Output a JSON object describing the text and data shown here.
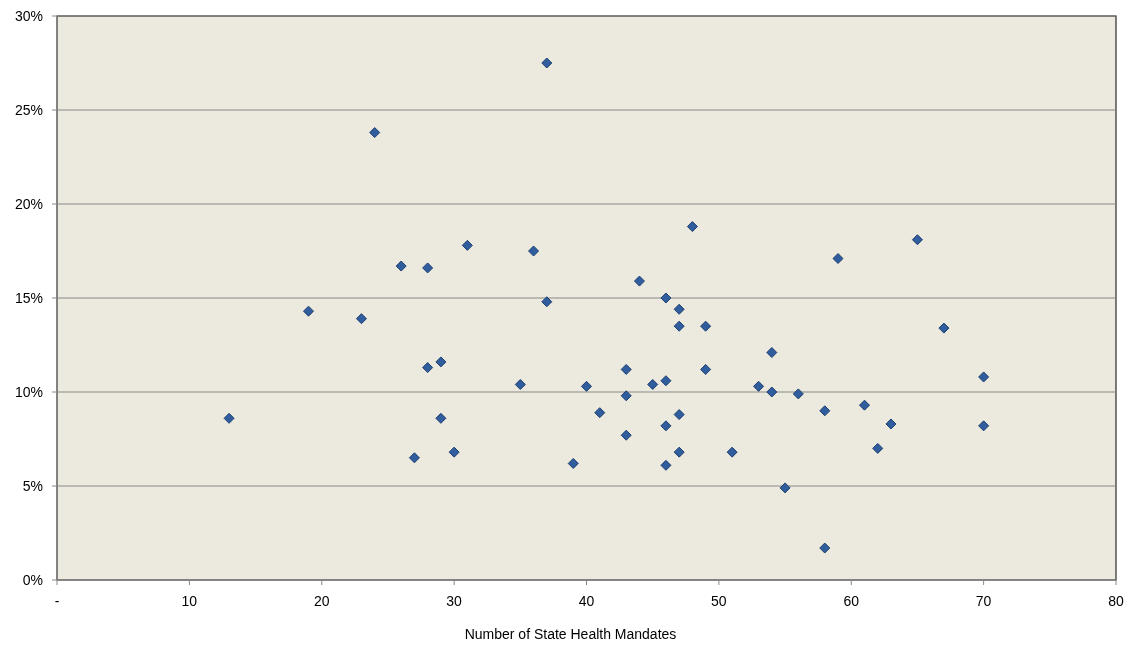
{
  "chart_data": {
    "type": "scatter",
    "xlabel": "Number of State Health Mandates",
    "x": [
      13,
      19,
      23,
      24,
      26,
      27,
      28,
      28,
      29,
      29,
      30,
      31,
      35,
      36,
      37,
      37,
      39,
      40,
      41,
      43,
      43,
      43,
      44,
      45,
      46,
      46,
      46,
      46,
      47,
      47,
      47,
      47,
      48,
      49,
      49,
      51,
      53,
      54,
      54,
      55,
      56,
      58,
      58,
      59,
      61,
      62,
      63,
      65,
      67,
      70,
      70
    ],
    "values": [
      8.6,
      14.3,
      13.9,
      23.8,
      16.7,
      6.5,
      16.6,
      11.3,
      11.6,
      8.6,
      6.8,
      17.8,
      10.4,
      17.5,
      27.5,
      14.8,
      6.2,
      10.3,
      8.9,
      11.2,
      9.8,
      7.7,
      15.9,
      10.4,
      15.0,
      10.6,
      8.2,
      6.1,
      14.4,
      13.5,
      8.8,
      6.8,
      18.8,
      13.5,
      11.2,
      6.8,
      10.3,
      12.1,
      10.0,
      4.9,
      9.9,
      9.0,
      1.7,
      17.1,
      9.3,
      7.0,
      8.3,
      18.1,
      13.4,
      10.8,
      8.2
    ],
    "color": "#2f5d9e",
    "marker": "diamond",
    "grid": "y",
    "xlim": [
      0,
      80
    ],
    "xticks": [
      {
        "value": 0,
        "label": "-"
      },
      10,
      20,
      30,
      40,
      50,
      60,
      70,
      80
    ],
    "ylim": [
      0,
      30
    ],
    "yticks": [
      {
        "value": 0,
        "label": "0%"
      },
      {
        "value": 5,
        "label": "5%"
      },
      {
        "value": 10,
        "label": "10%"
      },
      {
        "value": 15,
        "label": "15%"
      },
      {
        "value": 20,
        "label": "20%"
      },
      {
        "value": 25,
        "label": "25%"
      },
      {
        "value": 30,
        "label": "30%"
      }
    ]
  }
}
